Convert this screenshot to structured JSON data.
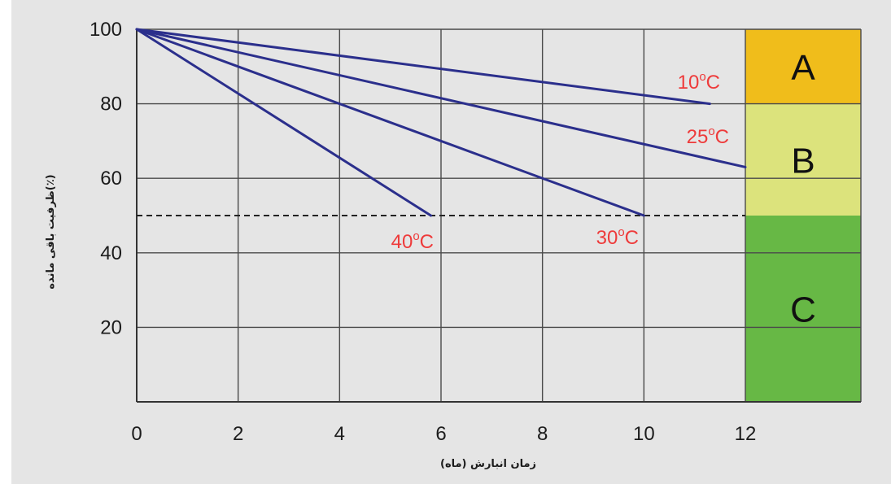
{
  "chart_data": {
    "type": "line",
    "xlabel": "زمان انبارش (ماه)",
    "ylabel": "ظرفیت باقی مانده(٪)",
    "xlim": [
      0,
      12
    ],
    "ylim": [
      0,
      100
    ],
    "x_ticks": [
      "0",
      "2",
      "4",
      "6",
      "8",
      "10",
      "12"
    ],
    "y_ticks": [
      "100",
      "80",
      "60",
      "40",
      "20"
    ],
    "grid": true,
    "series": [
      {
        "name": "10°C",
        "label_main": "10",
        "label_deg": "o",
        "label_unit": "C",
        "x": [
          0,
          11.3
        ],
        "y": [
          100,
          80
        ]
      },
      {
        "name": "25°C",
        "label_main": "25",
        "label_deg": "o",
        "label_unit": "C",
        "x": [
          0,
          12
        ],
        "y": [
          100,
          63
        ]
      },
      {
        "name": "30°C",
        "label_main": "30",
        "label_deg": "o",
        "label_unit": "C",
        "x": [
          0,
          10
        ],
        "y": [
          100,
          50
        ]
      },
      {
        "name": "40°C",
        "label_main": "40",
        "label_deg": "o",
        "label_unit": "C",
        "x": [
          0,
          5.8
        ],
        "y": [
          100,
          50
        ]
      }
    ],
    "reference_line": {
      "y": 50,
      "style": "dashed"
    },
    "zones": [
      {
        "label": "A",
        "from": 80,
        "to": 100,
        "color": "#f0bd1b"
      },
      {
        "label": "B",
        "from": 50,
        "to": 80,
        "color": "#dce37c"
      },
      {
        "label": "C",
        "from": 0,
        "to": 50,
        "color": "#67b845"
      }
    ],
    "colors": {
      "line": "#2b2f8c",
      "label": "#ee3b3b",
      "grid": "#4a4a4a",
      "background": "#e5e5e5"
    }
  }
}
